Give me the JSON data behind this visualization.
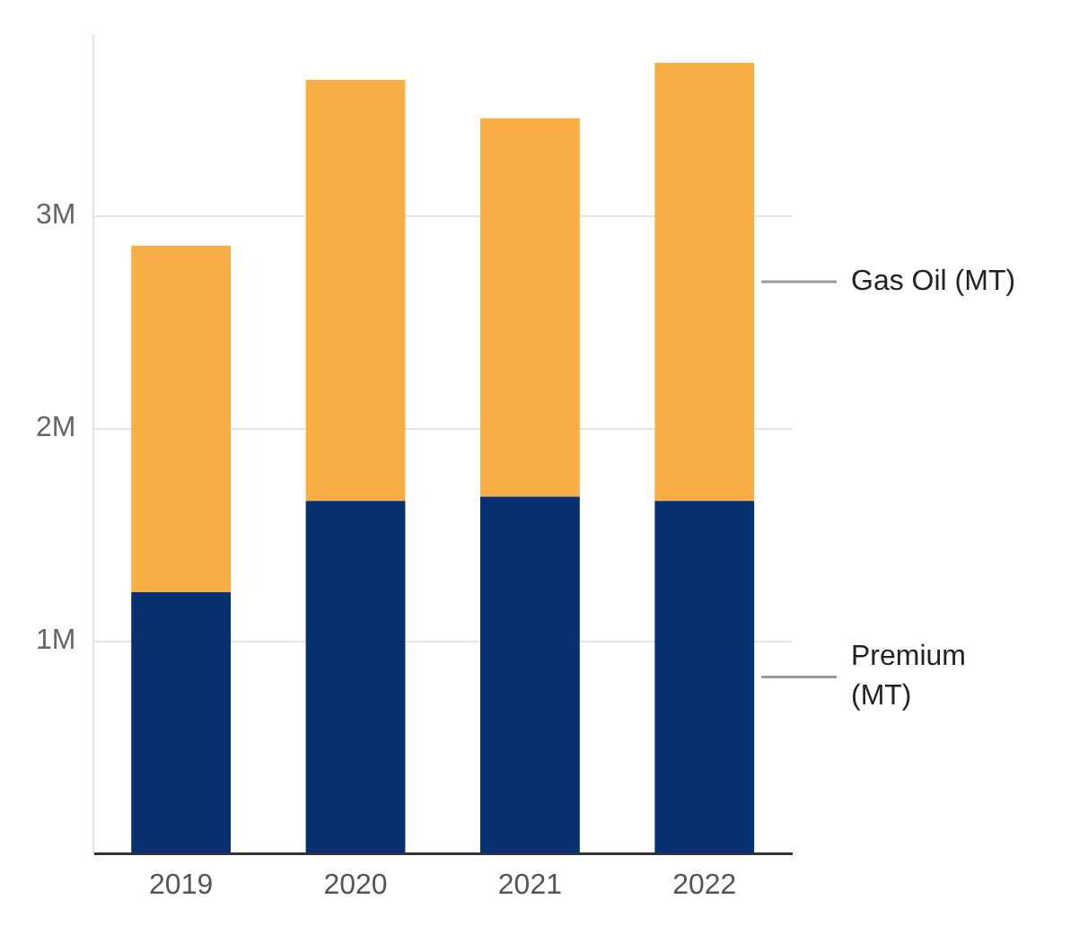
{
  "chart_data": {
    "type": "bar",
    "stacked": true,
    "categories": [
      "2019",
      "2020",
      "2021",
      "2022"
    ],
    "series": [
      {
        "name": "Premium (MT)",
        "color": "#06306e",
        "values": [
          1230000,
          1660000,
          1680000,
          1660000
        ]
      },
      {
        "name": "Gas Oil (MT)",
        "color": "#f9ae45",
        "values": [
          1630000,
          1980000,
          1780000,
          2060000
        ]
      }
    ],
    "ylim": [
      0,
      3850000
    ],
    "yticks": [
      {
        "value": 0,
        "label": null
      },
      {
        "value": 1000000,
        "label": "1M"
      },
      {
        "value": 2000000,
        "label": "2M"
      },
      {
        "value": 3000000,
        "label": "3M"
      }
    ],
    "grid": "y",
    "legend": "right"
  }
}
